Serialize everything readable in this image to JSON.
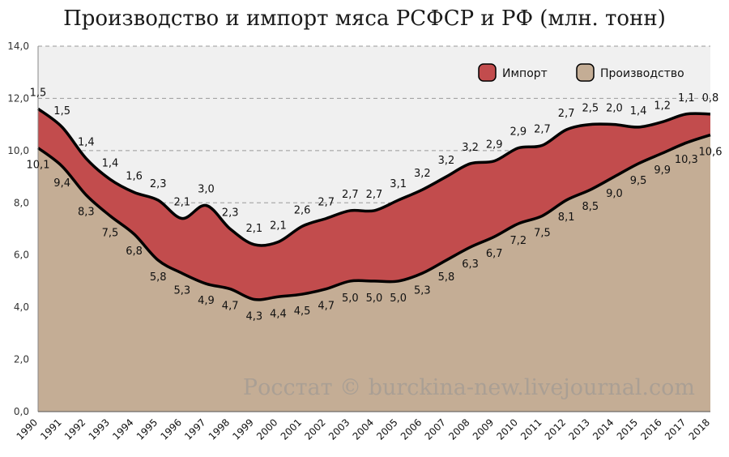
{
  "chart_data": {
    "type": "area",
    "title": "Производство и импорт мяса РСФСР и РФ (млн. тонн)",
    "xlabel": "",
    "ylabel": "",
    "ylim": [
      0,
      14
    ],
    "yticks": [
      "0,0",
      "2,0",
      "4,0",
      "6,0",
      "8,0",
      "10,0",
      "12,0",
      "14,0"
    ],
    "stacked": true,
    "grid": true,
    "legend_position": "top-right",
    "categories": [
      "1990",
      "1991",
      "1992",
      "1993",
      "1994",
      "1995",
      "1996",
      "1997",
      "1998",
      "1999",
      "2000",
      "2001",
      "2002",
      "2003",
      "2004",
      "2005",
      "2006",
      "2007",
      "2008",
      "2009",
      "2010",
      "2011",
      "2012",
      "2013",
      "2014",
      "2015",
      "2016",
      "2017",
      "2018"
    ],
    "series": [
      {
        "name": "Производство",
        "color": "#c4ad95",
        "values": [
          10.1,
          9.4,
          8.3,
          7.5,
          6.8,
          5.8,
          5.3,
          4.9,
          4.7,
          4.3,
          4.4,
          4.5,
          4.7,
          5.0,
          5.0,
          5.0,
          5.3,
          5.8,
          6.3,
          6.7,
          7.2,
          7.5,
          8.1,
          8.5,
          9.0,
          9.5,
          9.9,
          10.3,
          10.6
        ],
        "labels": [
          "10,1",
          "9,4",
          "8,3",
          "7,5",
          "6,8",
          "5,8",
          "5,3",
          "4,9",
          "4,7",
          "4,3",
          "4,4",
          "4,5",
          "4,7",
          "5,0",
          "5,0",
          "5,0",
          "5,3",
          "5,8",
          "6,3",
          "6,7",
          "7,2",
          "7,5",
          "8,1",
          "8,5",
          "9,0",
          "9,5",
          "9,9",
          "10,3",
          "10,6"
        ]
      },
      {
        "name": "Импорт",
        "color": "#c24c4d",
        "values": [
          1.5,
          1.5,
          1.4,
          1.4,
          1.6,
          2.3,
          2.1,
          3.0,
          2.3,
          2.1,
          2.1,
          2.6,
          2.7,
          2.7,
          2.7,
          3.1,
          3.2,
          3.2,
          3.2,
          2.9,
          2.9,
          2.7,
          2.7,
          2.5,
          2.0,
          1.4,
          1.2,
          1.1,
          0.8
        ],
        "labels": [
          "1,5",
          "1,5",
          "1,4",
          "1,4",
          "1,6",
          "2,3",
          "2,1",
          "3,0",
          "2,3",
          "2,1",
          "2,1",
          "2,6",
          "2,7",
          "2,7",
          "2,7",
          "3,1",
          "3,2",
          "3,2",
          "3,2",
          "2,9",
          "2,9",
          "2,7",
          "2,7",
          "2,5",
          "2,0",
          "1,4",
          "1,2",
          "1,1",
          "0,8"
        ]
      }
    ],
    "watermark": "Росстат © burckina-new.livejournal.com"
  }
}
